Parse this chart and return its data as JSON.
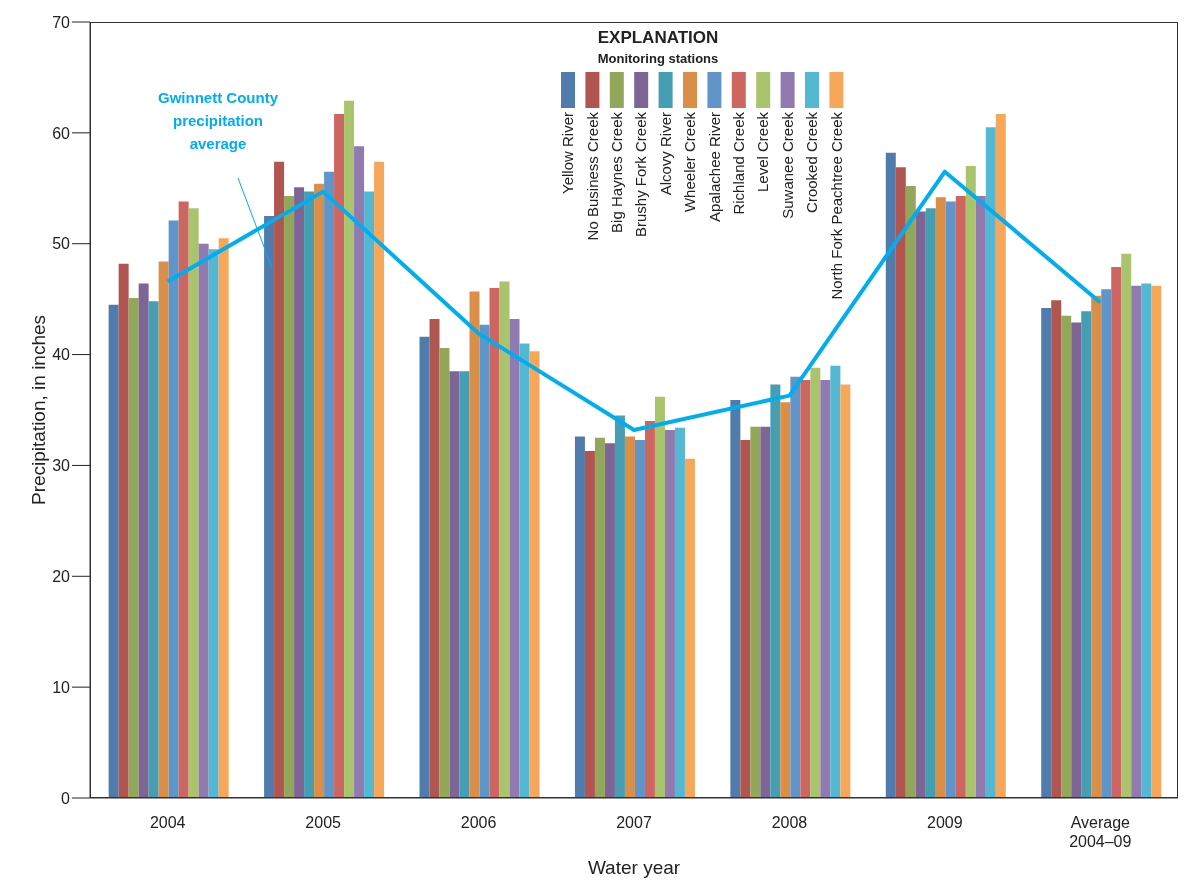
{
  "chart_data": {
    "type": "bar",
    "xlabel": "Water year",
    "ylabel": "Precipitation, in inches",
    "legend_title": "EXPLANATION",
    "annotations": [
      "Monitoring stations"
    ],
    "legend": "top",
    "categories": [
      "2004",
      "2005",
      "2006",
      "2007",
      "2008",
      "2009",
      "Average 2004–09"
    ],
    "ylim": [
      0,
      70
    ],
    "yticks": [
      0,
      10,
      20,
      30,
      40,
      50,
      60,
      70
    ],
    "series": [
      {
        "name": "Yellow River",
        "color": "#4f7cac",
        "values": [
          44.5,
          52.5,
          41.6,
          32.6,
          35.9,
          58.2,
          44.2
        ]
      },
      {
        "name": "No Business Creek",
        "color": "#b0554f",
        "values": [
          48.2,
          57.4,
          43.2,
          31.3,
          32.3,
          56.9,
          44.9
        ]
      },
      {
        "name": "Big Haynes Creek",
        "color": "#93a75a",
        "values": [
          45.1,
          54.3,
          40.6,
          32.5,
          33.5,
          55.2,
          43.5
        ]
      },
      {
        "name": "Brushy Fork Creek",
        "color": "#7d6696",
        "values": [
          46.4,
          55.1,
          38.5,
          32.0,
          33.5,
          52.9,
          42.9
        ]
      },
      {
        "name": "Alcovy River",
        "color": "#469eb2",
        "values": [
          44.8,
          54.7,
          38.5,
          34.5,
          37.3,
          53.2,
          43.9
        ]
      },
      {
        "name": "Wheeler Creek",
        "color": "#d98f47",
        "values": [
          48.4,
          55.4,
          45.7,
          32.6,
          35.7,
          54.2,
          45.3
        ]
      },
      {
        "name": "Apalachee River",
        "color": "#5f95c8",
        "values": [
          52.1,
          56.5,
          42.7,
          32.3,
          38.0,
          53.8,
          45.9
        ]
      },
      {
        "name": "Richland Creek",
        "color": "#cd6660",
        "values": [
          53.8,
          61.7,
          46.0,
          34.0,
          37.7,
          54.3,
          47.9
        ]
      },
      {
        "name": "Level Creek",
        "color": "#a9c46c",
        "values": [
          53.2,
          62.9,
          46.6,
          36.2,
          38.8,
          57.0,
          49.1
        ]
      },
      {
        "name": "Suwanee Creek",
        "color": "#907ab0",
        "values": [
          50.0,
          58.8,
          43.2,
          33.2,
          37.7,
          54.3,
          46.2
        ]
      },
      {
        "name": "Crooked Creek",
        "color": "#55b8d2",
        "values": [
          49.5,
          54.7,
          41.0,
          33.4,
          39.0,
          60.5,
          46.4
        ]
      },
      {
        "name": "North Fork Peachtree Creek",
        "color": "#f7a75a",
        "values": [
          50.5,
          57.4,
          40.3,
          30.6,
          37.3,
          61.7,
          46.2
        ]
      },
      {
        "name": "Gwinnett County precipitation average",
        "type": "line",
        "color": "#00aeef",
        "values": [
          46.6,
          54.7,
          41.9,
          33.2,
          36.3,
          56.5,
          44.7
        ]
      }
    ]
  }
}
